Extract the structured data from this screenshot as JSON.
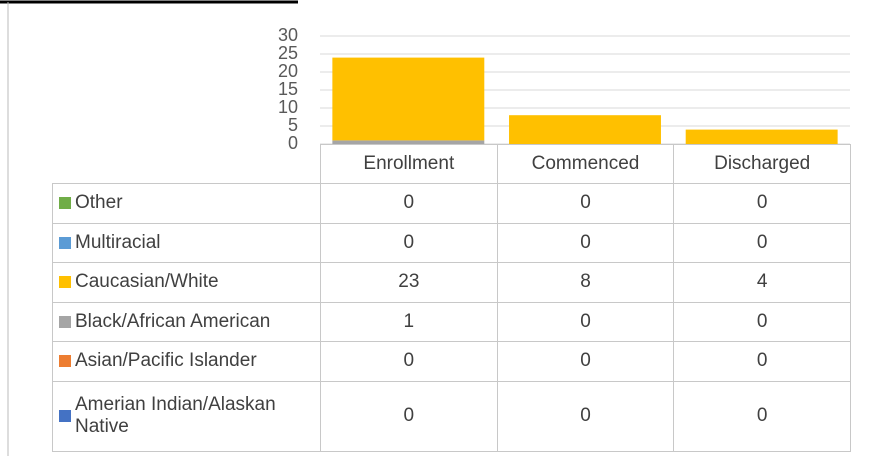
{
  "chart_data": {
    "type": "bar",
    "stacked": true,
    "categories": [
      "Enrollment",
      "Commenced",
      "Discharged"
    ],
    "series": [
      {
        "name": "Amerian Indian/Alaskan Native",
        "color": "#4472c4",
        "values": [
          0,
          0,
          0
        ]
      },
      {
        "name": "Asian/Pacific Islander",
        "color": "#ed7d31",
        "values": [
          0,
          0,
          0
        ]
      },
      {
        "name": "Black/African American",
        "color": "#a5a5a5",
        "values": [
          1,
          0,
          0
        ]
      },
      {
        "name": "Caucasian/White",
        "color": "#ffc000",
        "values": [
          23,
          8,
          4
        ]
      },
      {
        "name": "Multiracial",
        "color": "#5b9bd5",
        "values": [
          0,
          0,
          0
        ]
      },
      {
        "name": "Other",
        "color": "#70ad47",
        "values": [
          0,
          0,
          0
        ]
      }
    ],
    "ylim": [
      0,
      30
    ],
    "yticks": [
      0,
      5,
      10,
      15,
      20,
      25,
      30
    ],
    "grid": true
  }
}
